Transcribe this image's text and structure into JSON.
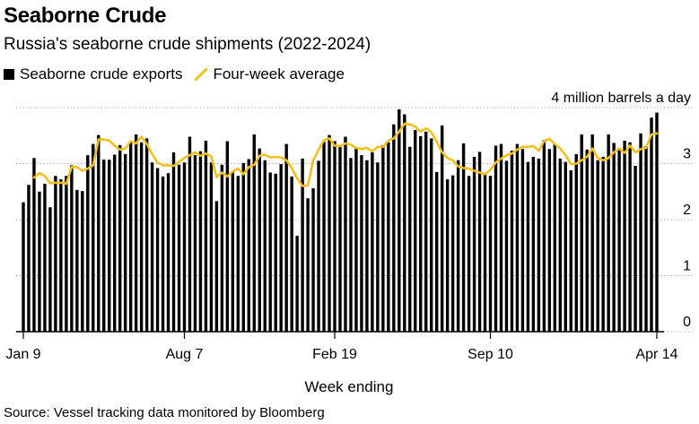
{
  "header": {
    "title": "Seaborne Crude",
    "subtitle": "Russia's seaborne crude shipments (2022-2024)"
  },
  "legend": {
    "bars_label": "Seaborne crude exports",
    "line_label": "Four-week average"
  },
  "source": "Source: Vessel tracking data monitored by Bloomberg",
  "colors": {
    "bars": "#000000",
    "line": "#f2c01e",
    "grid": "#9e9e9e"
  },
  "chart_data": {
    "type": "bar",
    "title": "Seaborne Crude",
    "subtitle": "Russia's seaborne crude shipments (2022-2024)",
    "xlabel": "Week ending",
    "ylabel": "million barrels a day",
    "y_unit_label": "4 million barrels a day",
    "ylim": [
      0,
      4.2
    ],
    "y_ticks": [
      {
        "value": 0,
        "label": "0"
      },
      {
        "value": 1,
        "label": "1"
      },
      {
        "value": 2,
        "label": "2"
      },
      {
        "value": 3,
        "label": "3"
      },
      {
        "value": 4,
        "label": "4 million barrels a day"
      }
    ],
    "x_ticks": [
      {
        "index": 0,
        "label": "Jan 9"
      },
      {
        "index": 30,
        "label": "Aug 7"
      },
      {
        "index": 58,
        "label": "Feb 19"
      },
      {
        "index": 87,
        "label": "Sep 10"
      },
      {
        "index": 118,
        "label": "Apr 14"
      }
    ],
    "series": [
      {
        "name": "Seaborne crude exports",
        "kind": "bar",
        "values": [
          2.31,
          2.62,
          3.1,
          2.5,
          2.64,
          2.22,
          2.78,
          2.72,
          2.78,
          2.97,
          2.53,
          2.51,
          3.15,
          3.35,
          3.51,
          3.07,
          3.07,
          3.16,
          3.33,
          3.17,
          3.4,
          3.52,
          3.38,
          3.45,
          3.02,
          2.92,
          2.77,
          2.83,
          3.2,
          2.98,
          3.02,
          3.48,
          3.15,
          3.22,
          3.41,
          3.02,
          2.33,
          2.98,
          3.4,
          2.85,
          2.78,
          3.01,
          3.08,
          3.52,
          3.27,
          3.06,
          2.84,
          2.82,
          2.99,
          3.35,
          2.77,
          1.71,
          3.09,
          2.38,
          2.56,
          3.05,
          3.39,
          3.51,
          3.4,
          3.3,
          3.48,
          3.1,
          3.27,
          3.15,
          3.06,
          3.2,
          3.02,
          3.33,
          3.38,
          3.7,
          3.97,
          3.88,
          3.3,
          3.6,
          3.49,
          3.57,
          3.45,
          2.85,
          3.68,
          2.72,
          2.79,
          3.06,
          3.36,
          2.78,
          3.12,
          3.21,
          2.83,
          2.78,
          3.32,
          3.35,
          3.05,
          3.23,
          3.35,
          3.26,
          3.03,
          3.12,
          3.09,
          3.42,
          3.26,
          3.35,
          3.09,
          3.03,
          2.88,
          3.17,
          3.52,
          3.25,
          3.52,
          3.06,
          3.12,
          3.52,
          3.37,
          3.24,
          3.41,
          3.38,
          2.96,
          3.54,
          3.31,
          3.82,
          3.91
        ]
      },
      {
        "name": "Four-week average",
        "kind": "line",
        "values": [
          null,
          null,
          2.75,
          2.83,
          2.78,
          2.65,
          2.66,
          2.66,
          2.64,
          2.94,
          2.94,
          2.87,
          2.91,
          2.97,
          3.43,
          3.43,
          3.41,
          3.32,
          3.25,
          3.27,
          3.4,
          3.36,
          3.48,
          3.35,
          3.17,
          3.02,
          2.97,
          2.97,
          2.96,
          3.03,
          3.1,
          3.15,
          3.2,
          3.14,
          3.18,
          3.13,
          2.76,
          2.84,
          2.77,
          2.86,
          2.91,
          2.81,
          2.94,
          2.98,
          3.14,
          3.16,
          3.11,
          3.12,
          3.11,
          3.06,
          2.92,
          2.74,
          2.6,
          2.61,
          3.06,
          3.25,
          3.42,
          3.45,
          3.32,
          3.31,
          3.36,
          3.34,
          3.28,
          3.26,
          3.28,
          3.22,
          3.3,
          3.3,
          3.41,
          3.45,
          3.57,
          3.71,
          3.7,
          3.66,
          3.57,
          3.63,
          3.56,
          3.39,
          3.2,
          3.1,
          3.06,
          2.95,
          2.92,
          2.91,
          2.87,
          2.84,
          2.81,
          2.89,
          3.02,
          3.09,
          3.15,
          3.18,
          3.25,
          3.3,
          3.3,
          3.31,
          3.23,
          3.4,
          3.44,
          3.35,
          3.27,
          3.15,
          2.99,
          3.0,
          3.06,
          3.12,
          3.27,
          3.1,
          3.06,
          3.1,
          3.2,
          3.27,
          3.19,
          3.32,
          3.2,
          3.26,
          3.28,
          3.52,
          3.54
        ]
      }
    ]
  }
}
